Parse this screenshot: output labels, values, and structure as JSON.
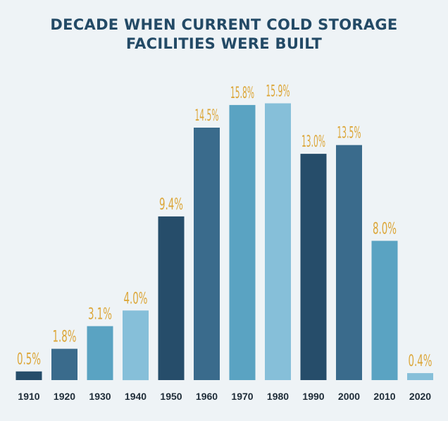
{
  "chart_data": {
    "type": "bar",
    "title": "DECADE WHEN CURRENT COLD STORAGE FACILITIES WERE BUILT",
    "title_lines": [
      "DECADE WHEN CURRENT COLD STORAGE",
      "FACILITIES WERE BUILT"
    ],
    "categories": [
      "1910",
      "1920",
      "1930",
      "1940",
      "1950",
      "1960",
      "1970",
      "1980",
      "1990",
      "2000",
      "2010",
      "2020"
    ],
    "values": [
      0.5,
      1.8,
      3.1,
      4.0,
      9.4,
      14.5,
      15.8,
      15.9,
      13.0,
      13.5,
      8.0,
      0.4
    ],
    "data_labels": [
      "0.5%",
      "1.8%",
      "3.1%",
      "4.0%",
      "9.4%",
      "14.5%",
      "15.8%",
      "15.9%",
      "13.0%",
      "13.5%",
      "8.0%",
      "0.4%"
    ],
    "value_unit": "%",
    "xlabel": "",
    "ylabel": "",
    "ylim": [
      0,
      16
    ],
    "grid": false,
    "legend": "none",
    "bar_colors": [
      "#264d6a",
      "#3a6b8c",
      "#5aa3c2",
      "#86bfd9"
    ],
    "label_color": "#dca638",
    "tick_color": "#1e2c38",
    "title_color": "#234a66",
    "background_color": "#eef3f6"
  }
}
